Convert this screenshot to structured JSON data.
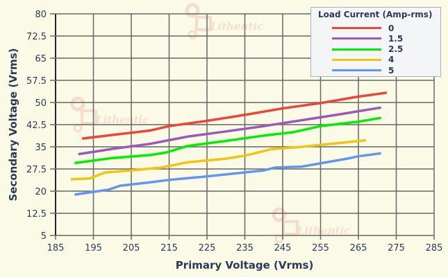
{
  "chart_data": {
    "type": "line",
    "title": "",
    "xlabel": "Primary Voltage (Vrms)",
    "ylabel": "Secondary Voltage (Vrms)",
    "xlim": [
      185,
      285
    ],
    "ylim": [
      5,
      80
    ],
    "xticks": [
      "185",
      "195",
      "205",
      "215",
      "225",
      "235",
      "245",
      "255",
      "265",
      "275",
      "285"
    ],
    "yticks": [
      "80",
      "72.5",
      "65",
      "57.5",
      "50",
      "42.5",
      "35",
      "27.5",
      "20",
      "12.5",
      "5"
    ],
    "grid": true,
    "legend_title": "Load Current (Amp-rms)",
    "legend_position": "top-right",
    "watermark": "Lithentic",
    "series": [
      {
        "name": "0",
        "color": "#e8473a",
        "x": [
          192,
          200,
          210,
          215,
          225,
          235,
          245,
          255,
          265,
          272.5
        ],
        "y": [
          37.8,
          39,
          40.5,
          42,
          43.8,
          45.8,
          48,
          49.8,
          52,
          53.3
        ]
      },
      {
        "name": "1.5",
        "color": "#9b59b6",
        "x": [
          191,
          200,
          210,
          220,
          230,
          240,
          250,
          260,
          271
        ],
        "y": [
          32.5,
          34.3,
          36,
          38.5,
          40.2,
          42,
          44,
          46,
          48.3
        ]
      },
      {
        "name": "2.5",
        "color": "#00ee00",
        "x": [
          190,
          200,
          210,
          214,
          220,
          230,
          240,
          248,
          255,
          265,
          271
        ],
        "y": [
          29.5,
          31.2,
          32.2,
          33,
          35.3,
          37,
          38.8,
          40,
          42,
          43.5,
          44.8
        ]
      },
      {
        "name": "4",
        "color": "#f1c40f",
        "x": [
          189,
          194,
          198,
          205,
          213,
          220,
          230,
          235,
          242,
          250,
          260,
          267
        ],
        "y": [
          24,
          24.3,
          26.3,
          27,
          28,
          29.8,
          31,
          32,
          34.2,
          35,
          36.3,
          37.2
        ]
      },
      {
        "name": "5",
        "color": "#6495ed",
        "x": [
          190,
          199,
          202,
          210,
          215,
          225,
          240,
          243,
          250,
          262,
          265,
          271
        ],
        "y": [
          18.8,
          20.5,
          21.8,
          23,
          23.8,
          25,
          27,
          28,
          28.3,
          31,
          31.8,
          32.8
        ]
      }
    ]
  }
}
